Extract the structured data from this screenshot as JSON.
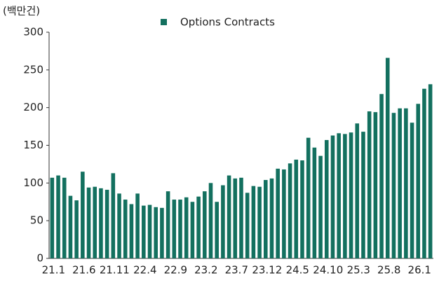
{
  "chart_data": {
    "type": "bar",
    "unit_label": "(백만건)",
    "categories": [
      "21.1",
      null,
      null,
      null,
      null,
      "21.6",
      null,
      null,
      null,
      null,
      "21.11",
      null,
      null,
      null,
      null,
      "22.4",
      null,
      null,
      null,
      null,
      "22.9",
      null,
      null,
      null,
      null,
      "23.2",
      null,
      null,
      null,
      null,
      "23.7",
      null,
      null,
      null,
      null,
      "23.12",
      null,
      null,
      null,
      null,
      "24.5",
      null,
      null,
      null,
      null,
      "24.10",
      null,
      null,
      null,
      null,
      "25.3",
      null,
      null,
      null,
      null,
      "25.8",
      null,
      null,
      null,
      null,
      "26.1",
      null,
      null
    ],
    "series": [
      {
        "name": "Options Contracts",
        "color": "#13705f",
        "values": [
          107,
          110,
          107,
          83,
          77,
          115,
          94,
          95,
          93,
          91,
          113,
          86,
          78,
          72,
          86,
          70,
          71,
          68,
          67,
          89,
          78,
          78,
          81,
          75,
          82,
          89,
          100,
          75,
          97,
          110,
          106,
          107,
          87,
          96,
          95,
          104,
          106,
          119,
          118,
          126,
          131,
          130,
          160,
          147,
          136,
          157,
          163,
          166,
          165,
          167,
          179,
          168,
          195,
          194,
          218,
          266,
          193,
          199,
          199,
          180,
          205,
          225,
          231
        ]
      }
    ],
    "ylim": [
      0,
      300
    ],
    "yticks": [
      0,
      50,
      100,
      150,
      200,
      250,
      300
    ],
    "grid": false,
    "legend": "top"
  }
}
